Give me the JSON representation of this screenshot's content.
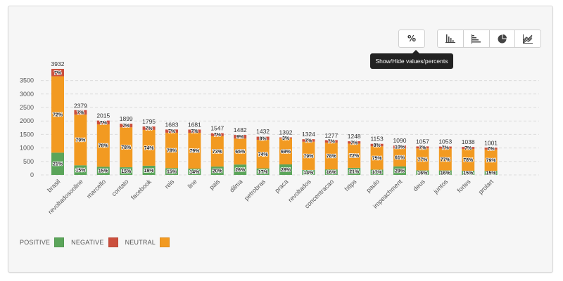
{
  "toolbar": {
    "percent_label": "%",
    "tooltip": "Show/Hide values/percents",
    "chart_type_buttons": [
      {
        "name": "vertical-bar-chart-icon"
      },
      {
        "name": "horizontal-bar-chart-icon"
      },
      {
        "name": "pie-chart-icon"
      },
      {
        "name": "area-chart-icon"
      }
    ]
  },
  "legend": [
    {
      "label": "POSITIVE",
      "color": "#5ba55a"
    },
    {
      "label": "NEGATIVE",
      "color": "#cb4f3d"
    },
    {
      "label": "NEUTRAL",
      "color": "#f29a21"
    }
  ],
  "chart_data": {
    "type": "bar",
    "stacked": true,
    "title": "",
    "xlabel": "",
    "ylabel": "",
    "ylim": [
      0,
      4000
    ],
    "yticks": [
      0,
      500,
      1000,
      1500,
      2000,
      2500,
      3000,
      3500
    ],
    "grid": true,
    "legend_position": "bottom-left",
    "categories": [
      "brasil",
      "revoltadosonline",
      "marcello",
      "contato",
      "facebook",
      "reis",
      "line",
      "pais",
      "dilma",
      "petrobras",
      "praca",
      "revoltados",
      "concentracao",
      "https",
      "paulo",
      "impeachment",
      "deus",
      "juntos",
      "fortes",
      "prolart"
    ],
    "totals": [
      3932,
      2379,
      2015,
      1899,
      1795,
      1683,
      1681,
      1547,
      1482,
      1432,
      1392,
      1324,
      1277,
      1248,
      1153,
      1090,
      1057,
      1053,
      1038,
      1001
    ],
    "series": [
      {
        "name": "POSITIVE",
        "color": "#5ba55a",
        "percents": [
          21,
          15,
          15,
          15,
          19,
          15,
          14,
          20,
          26,
          17,
          28,
          14,
          16,
          21,
          17,
          29,
          16,
          16,
          15,
          15
        ]
      },
      {
        "name": "NEUTRAL",
        "color": "#f29a21",
        "percents": [
          72,
          79,
          78,
          78,
          74,
          78,
          79,
          73,
          65,
          74,
          69,
          79,
          78,
          72,
          75,
          61,
          77,
          77,
          78,
          79
        ]
      },
      {
        "name": "NEGATIVE",
        "color": "#cb4f3d",
        "percents": [
          7,
          7,
          7,
          7,
          7,
          7,
          7,
          7,
          9,
          8,
          3,
          7,
          7,
          7,
          8,
          10,
          7,
          7,
          7,
          7
        ]
      }
    ]
  }
}
